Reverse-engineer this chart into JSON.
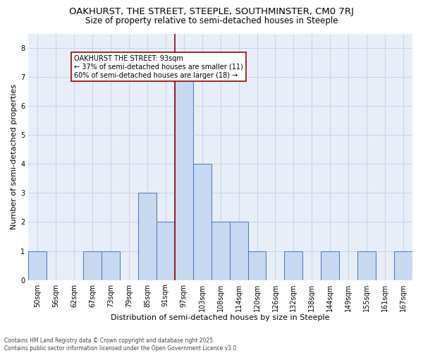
{
  "title": "OAKHURST, THE STREET, STEEPLE, SOUTHMINSTER, CM0 7RJ",
  "subtitle": "Size of property relative to semi-detached houses in Steeple",
  "xlabel": "Distribution of semi-detached houses by size in Steeple",
  "ylabel": "Number of semi-detached properties",
  "footer_line1": "Contains HM Land Registry data © Crown copyright and database right 2025.",
  "footer_line2": "Contains public sector information licensed under the Open Government Licence v3.0.",
  "annotation_title": "OAKHURST THE STREET: 93sqm",
  "annotation_line1": "← 37% of semi-detached houses are smaller (11)",
  "annotation_line2": "60% of semi-detached houses are larger (18) →",
  "property_size": 93,
  "bar_categories": [
    "50sqm",
    "56sqm",
    "62sqm",
    "67sqm",
    "73sqm",
    "79sqm",
    "85sqm",
    "91sqm",
    "97sqm",
    "103sqm",
    "108sqm",
    "114sqm",
    "120sqm",
    "126sqm",
    "132sqm",
    "138sqm",
    "144sqm",
    "149sqm",
    "155sqm",
    "161sqm",
    "167sqm"
  ],
  "bar_values": [
    1,
    0,
    0,
    1,
    1,
    0,
    3,
    2,
    7,
    4,
    2,
    2,
    1,
    0,
    1,
    0,
    1,
    0,
    1,
    0,
    1
  ],
  "bar_color": "#c6d9f1",
  "bar_edge_color": "#4472c4",
  "grid_color": "#c8d4e8",
  "background_color": "#e8eef8",
  "vline_color": "#990000",
  "vline_x": 93,
  "annotation_box_color": "#990000",
  "ylim": [
    0,
    8.5
  ],
  "yticks": [
    0,
    1,
    2,
    3,
    4,
    5,
    6,
    7,
    8
  ],
  "title_fontsize": 9.5,
  "subtitle_fontsize": 8.5,
  "xlabel_fontsize": 8,
  "ylabel_fontsize": 8,
  "tick_fontsize": 7,
  "annotation_fontsize": 7,
  "footer_fontsize": 5.5
}
